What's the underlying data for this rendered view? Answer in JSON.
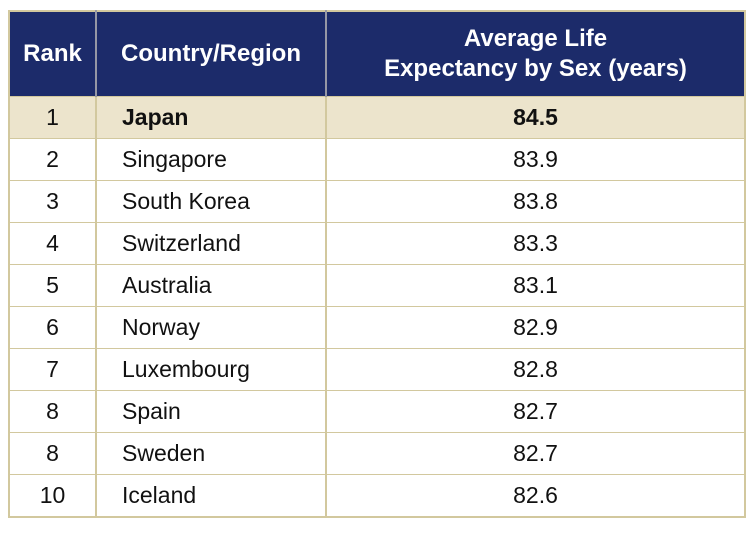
{
  "table": {
    "col_headers": {
      "rank": "Rank",
      "country": "Country/Region",
      "value": "Average Life\nExpectancy by Sex (years)"
    },
    "rows": [
      {
        "rank": "1",
        "country": "Japan",
        "value": "84.5"
      },
      {
        "rank": "2",
        "country": "Singapore",
        "value": "83.9"
      },
      {
        "rank": "3",
        "country": "South Korea",
        "value": "83.8"
      },
      {
        "rank": "4",
        "country": "Switzerland",
        "value": "83.3"
      },
      {
        "rank": "5",
        "country": "Australia",
        "value": "83.1"
      },
      {
        "rank": "6",
        "country": "Norway",
        "value": "82.9"
      },
      {
        "rank": "7",
        "country": "Luxembourg",
        "value": "82.8"
      },
      {
        "rank": "8",
        "country": "Spain",
        "value": "82.7"
      },
      {
        "rank": "8",
        "country": "Sweden",
        "value": "82.7"
      },
      {
        "rank": "10",
        "country": "Iceland",
        "value": "82.6"
      }
    ]
  },
  "chart_data": {
    "type": "table",
    "title": "",
    "columns": [
      "Rank",
      "Country/Region",
      "Average Life Expectancy by Sex (years)"
    ],
    "rows": [
      [
        "1",
        "Japan",
        84.5
      ],
      [
        "2",
        "Singapore",
        83.9
      ],
      [
        "3",
        "South Korea",
        83.8
      ],
      [
        "4",
        "Switzerland",
        83.3
      ],
      [
        "5",
        "Australia",
        83.1
      ],
      [
        "6",
        "Norway",
        82.9
      ],
      [
        "7",
        "Luxembourg",
        82.8
      ],
      [
        "8",
        "Spain",
        82.7
      ],
      [
        "8",
        "Sweden",
        82.7
      ],
      [
        "10",
        "Iceland",
        82.6
      ]
    ],
    "highlighted_row_index": 0
  },
  "colors": {
    "header_bg": "#1c2b6a",
    "header_text": "#ffffff",
    "header_divider": "#9597a5",
    "highlight_row_bg": "#ece4cc",
    "row_bg": "#ffffff",
    "border": "#d2c89e",
    "text": "#111111"
  }
}
